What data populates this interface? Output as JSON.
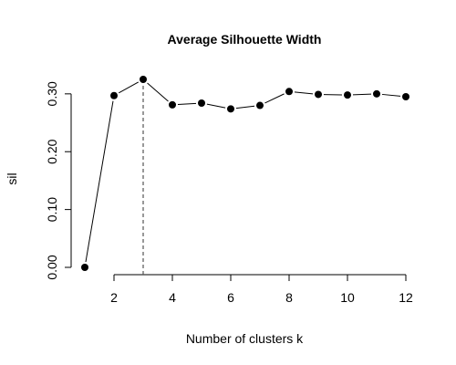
{
  "chart_data": {
    "type": "line",
    "title": "Average Silhouette Width",
    "xlabel": "Number of clusters k",
    "ylabel": "sil",
    "x": [
      1,
      2,
      3,
      4,
      5,
      6,
      7,
      8,
      9,
      10,
      11,
      12
    ],
    "series": [
      {
        "values": [
          0.0,
          0.297,
          0.325,
          0.281,
          0.284,
          0.274,
          0.28,
          0.304,
          0.299,
          0.298,
          0.3,
          0.295
        ]
      }
    ],
    "xlim": [
      1,
      12
    ],
    "ylim": [
      0,
      0.325
    ],
    "x_ticks": [
      2,
      4,
      6,
      8,
      10,
      12
    ],
    "y_ticks": [
      0.0,
      0.1,
      0.2,
      0.3
    ],
    "x_tick_labels": [
      "2",
      "4",
      "6",
      "8",
      "10",
      "12"
    ],
    "y_tick_labels": [
      "0.00",
      "0.10",
      "0.20",
      "0.30"
    ],
    "vline_x": 3,
    "grid": false,
    "line_color": "#000000",
    "point_color": "#000000",
    "vline_color": "#555555"
  }
}
